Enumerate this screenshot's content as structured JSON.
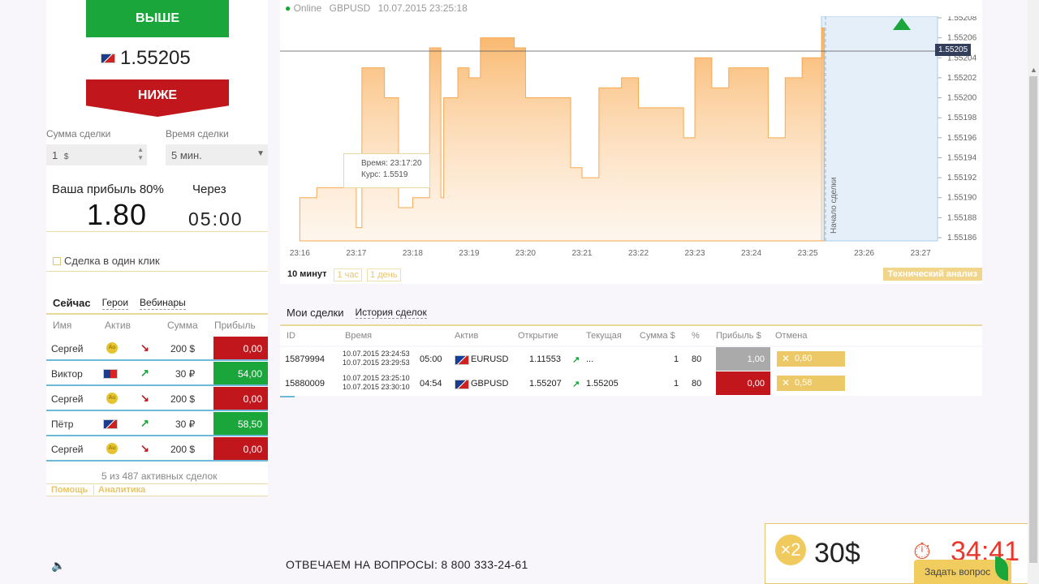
{
  "left": {
    "up_label": "ВЫШЕ",
    "down_label": "НИЖЕ",
    "price": "1.55205",
    "amount_label": "Сумма сделки",
    "amount_value": "1",
    "amount_unit": "$",
    "time_label": "Время сделки",
    "time_value": "5 мин.",
    "profit_label": "Ваша прибыль 80%",
    "profit_value": "1.80",
    "through_label": "Через",
    "through_value": "05:00",
    "one_click_label": "Сделка в один клик",
    "tabs": [
      "Сейчас",
      "Герои",
      "Вебинары"
    ],
    "columns": [
      "Имя",
      "Актив",
      "Сумма",
      "Прибыль"
    ],
    "trades": [
      {
        "name": "Сергей",
        "asset": "Au",
        "dir": "down",
        "sum": "200 $",
        "profit": "0,00",
        "color": "#c0161c"
      },
      {
        "name": "Виктор",
        "asset": "AUDCHF",
        "dir": "up",
        "sum": "30 ₽",
        "profit": "54,00",
        "color": "#1aa63a"
      },
      {
        "name": "Сергей",
        "asset": "Au",
        "dir": "down",
        "sum": "200 $",
        "profit": "0,00",
        "color": "#c0161c"
      },
      {
        "name": "Пётр",
        "asset": "GBPUSD",
        "dir": "up",
        "sum": "30 ₽",
        "profit": "58,50",
        "color": "#1aa63a"
      },
      {
        "name": "Сергей",
        "asset": "Au",
        "dir": "down",
        "sum": "200 $",
        "profit": "0,00",
        "color": "#c0161c"
      }
    ],
    "summary": "5 из 487 активных сделок",
    "help": "Помощь",
    "analytics": "Аналитика"
  },
  "chart": {
    "status": "Online",
    "pair": "GBPUSD",
    "datetime": "10.07.2015 23:25:18",
    "current_price": "1.55205",
    "tooltip_time": "Время: 23:17:20",
    "tooltip_rate": "Курс: 1.5519",
    "start_label": "Начало сделки",
    "periods": [
      "10 минут",
      "1 час",
      "1 день"
    ],
    "ta_label": "Технический анализ"
  },
  "chart_data": {
    "type": "area",
    "x_ticks": [
      "23:16",
      "23:17",
      "23:18",
      "23:19",
      "23:20",
      "23:21",
      "23:22",
      "23:23",
      "23:24",
      "23:25",
      "23:26",
      "23:27"
    ],
    "y_ticks": [
      "1.55208",
      "1.55206",
      "1.55204",
      "1.55202",
      "1.55200",
      "1.55198",
      "1.55196",
      "1.55194",
      "1.55192",
      "1.55190",
      "1.55188",
      "1.55186"
    ],
    "ylim": [
      1.55186,
      1.55208
    ],
    "x_minutes": [
      16.0,
      16.3,
      16.7,
      17.0,
      17.1,
      17.5,
      17.75,
      18.0,
      18.3,
      18.5,
      18.55,
      18.8,
      19.0,
      19.2,
      19.5,
      19.8,
      20.0,
      20.4,
      20.8,
      21.0,
      21.3,
      21.7,
      22.0,
      22.4,
      22.8,
      23.0,
      23.3,
      23.6,
      24.0,
      24.3,
      24.6,
      24.9,
      25.1,
      25.25
    ],
    "values": [
      1.5519,
      1.55191,
      1.55191,
      1.55187,
      1.55203,
      1.552,
      1.55189,
      1.5519,
      1.55205,
      1.5519,
      1.552,
      1.55203,
      1.55202,
      1.55206,
      1.55206,
      1.55205,
      1.552,
      1.552,
      1.55193,
      1.55192,
      1.55201,
      1.55202,
      1.55199,
      1.55199,
      1.55196,
      1.55204,
      1.55201,
      1.55203,
      1.55203,
      1.55196,
      1.55202,
      1.55204,
      1.55204,
      1.55207
    ],
    "xlim": [
      15.65,
      27.3
    ]
  },
  "my_trades": {
    "tabs": [
      "Мои сделки",
      "История сделок"
    ],
    "columns": [
      "ID",
      "Время",
      "Актив",
      "Открытие",
      "Текущая",
      "Сумма $",
      "%",
      "Прибыль $",
      "Отмена"
    ],
    "rows": [
      {
        "id": "15879994",
        "t1": "10.07.2015 23:24:53",
        "t2": "10.07.2015 23:29:53",
        "left": "05:00",
        "asset": "EURUSD",
        "open": "1.11553",
        "current": "...",
        "sum": "1",
        "pct": "80",
        "profit": "1,00",
        "profit_color": "#aaaaaa",
        "cancel": "0,60"
      },
      {
        "id": "15880009",
        "t1": "10.07.2015 23:25:10",
        "t2": "10.07.2015 23:30:10",
        "left": "04:54",
        "asset": "GBPUSD",
        "open": "1.55207",
        "current": "1.55205",
        "sum": "1",
        "pct": "80",
        "profit": "0,00",
        "profit_color": "#c0161c",
        "cancel": "0,58"
      }
    ]
  },
  "footer": {
    "phone_text": "ОТВЕЧАЕМ НА ВОПРОСЫ: 8 800 333-24-61",
    "promo_multiplier": "×2",
    "promo_amount": "30$",
    "promo_timer": "34:41",
    "ask_label": "Задать вопрос"
  },
  "colors": {
    "up": "#1aa63a",
    "down": "#c0161c",
    "accent": "#f1cc5e",
    "chart_fill": "#fbc68a"
  }
}
